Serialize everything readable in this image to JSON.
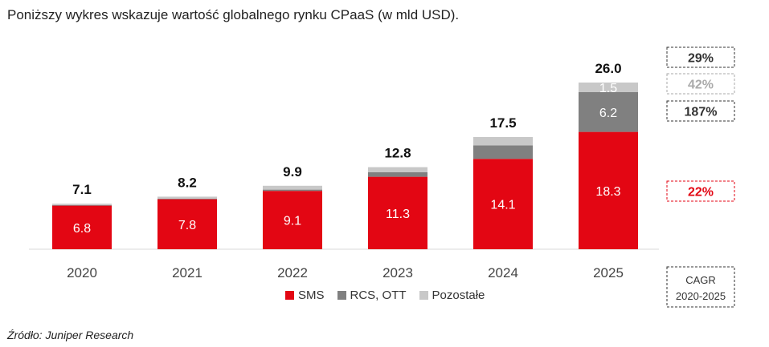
{
  "title": "Poniższy wykres wskazuje wartość globalnego rynku CPaaS (w mld USD).",
  "source": "Źródło: Juniper Research",
  "colors": {
    "sms": "#e30613",
    "rcs": "#808080",
    "other": "#c8c8c8",
    "cagr_sms": "#e30613",
    "cagr_rcs": "#333333",
    "cagr_other": "#aaaaaa",
    "cagr_total": "#333333"
  },
  "chart_data": {
    "type": "bar",
    "stacked": true,
    "title": "",
    "xlabel": "",
    "ylabel": "",
    "categories": [
      "2020",
      "2021",
      "2022",
      "2023",
      "2024",
      "2025"
    ],
    "series": [
      {
        "name": "SMS",
        "values": [
          6.8,
          7.8,
          9.1,
          11.3,
          14.1,
          18.3
        ],
        "labels": [
          "6.8",
          "7.8",
          "9.1",
          "11.3",
          "14.1",
          "18.3"
        ]
      },
      {
        "name": "RCS, OTT",
        "values": [
          0.1,
          0.1,
          0.2,
          0.7,
          2.1,
          6.2
        ],
        "labels": [
          "",
          "",
          "",
          "",
          "",
          "6.2"
        ]
      },
      {
        "name": "Pozostałe",
        "values": [
          0.2,
          0.3,
          0.6,
          0.8,
          1.3,
          1.5
        ],
        "labels": [
          "",
          "",
          "",
          "",
          "",
          "1.5"
        ]
      }
    ],
    "totals": [
      7.1,
      8.2,
      9.9,
      12.8,
      17.5,
      26.0
    ],
    "total_labels": [
      "7.1",
      "8.2",
      "9.9",
      "12.8",
      "17.5",
      "26.0"
    ],
    "ylim": [
      0,
      28
    ],
    "grid": false,
    "legend_position": "bottom"
  },
  "cagr": {
    "title_line1": "CAGR",
    "title_line2": "2020-2025",
    "total": "29%",
    "other": "42%",
    "rcs": "187%",
    "sms": "22%"
  }
}
